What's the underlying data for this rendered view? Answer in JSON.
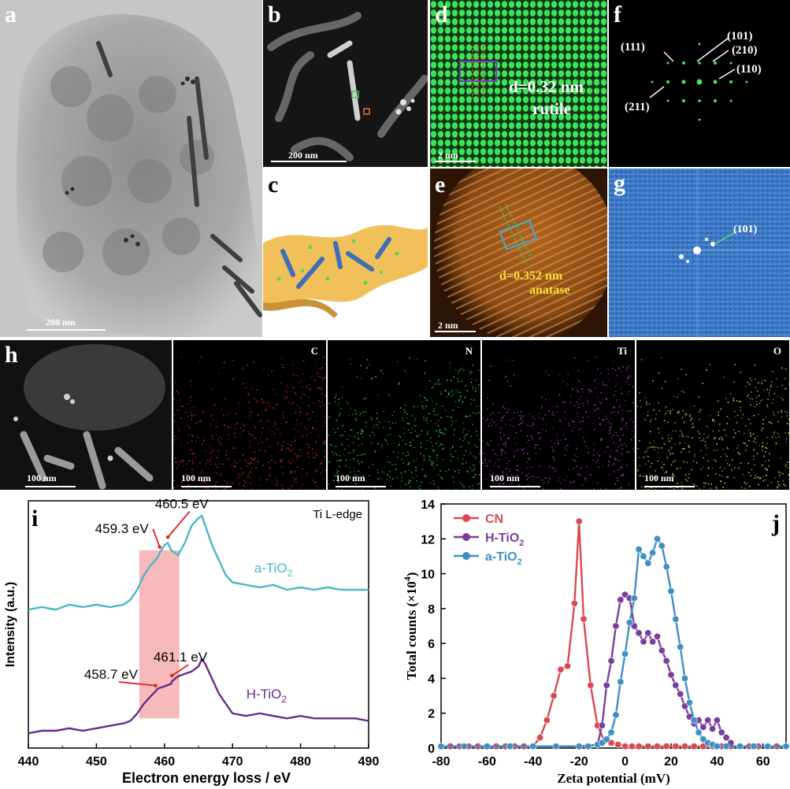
{
  "panels": {
    "a": {
      "label": "a",
      "scale": "200 nm"
    },
    "b": {
      "label": "b",
      "scale": "200 nm"
    },
    "c": {
      "label": "c"
    },
    "d": {
      "label": "d",
      "scale": "2 nm",
      "d_text": "d=0.32 nm",
      "phase": "rutile"
    },
    "e": {
      "label": "e",
      "scale": "2 nm",
      "d_text": "d=0.352 nm",
      "phase": "anatase"
    },
    "f": {
      "label": "f",
      "indices": [
        "(111)",
        "(101)",
        "(210)",
        "(110)",
        "(211)"
      ]
    },
    "g": {
      "label": "g",
      "indices": [
        "(101)"
      ]
    },
    "h": {
      "label": "h",
      "maps": [
        {
          "element": "",
          "scale": "100 nm",
          "color": "#bfbfbf"
        },
        {
          "element": "C",
          "scale": "100 nm",
          "color": "#d92b2b"
        },
        {
          "element": "N",
          "scale": "100 nm",
          "color": "#2fd04a"
        },
        {
          "element": "Ti",
          "scale": "100 nm",
          "color": "#b43ec8"
        },
        {
          "element": "O",
          "scale": "100 nm",
          "color": "#d8d24a"
        }
      ]
    }
  },
  "chart_data": [
    {
      "panel": "i",
      "type": "line",
      "title": "Ti L-edge",
      "xlabel": "Electron energy loss / eV",
      "ylabel": "Intensity (a.u.)",
      "xlim": [
        440,
        490
      ],
      "xticks": [
        440,
        450,
        460,
        470,
        480,
        490
      ],
      "series": [
        {
          "name": "a-TiO2",
          "color": "#4ab7c9",
          "x": [
            440,
            442,
            444,
            446,
            448,
            450,
            452,
            454,
            455,
            456,
            457,
            458,
            459,
            459.3,
            460,
            460.5,
            461,
            462,
            463,
            464,
            465,
            465.5,
            466,
            467,
            468,
            469,
            470,
            472,
            474,
            476,
            478,
            480,
            482,
            484,
            486,
            488,
            490
          ],
          "y": [
            0.56,
            0.57,
            0.56,
            0.58,
            0.57,
            0.58,
            0.57,
            0.58,
            0.6,
            0.64,
            0.7,
            0.74,
            0.77,
            0.79,
            0.82,
            0.83,
            0.8,
            0.78,
            0.83,
            0.9,
            0.93,
            0.94,
            0.9,
            0.82,
            0.76,
            0.7,
            0.67,
            0.66,
            0.65,
            0.66,
            0.64,
            0.65,
            0.64,
            0.65,
            0.64,
            0.64,
            0.64
          ]
        },
        {
          "name": "H-TiO2",
          "color": "#6a2a8a",
          "x": [
            440,
            442,
            444,
            446,
            448,
            450,
            452,
            454,
            455,
            456,
            457,
            458,
            458.7,
            459,
            460,
            461,
            461.1,
            462,
            463,
            464,
            465,
            465.5,
            466,
            467,
            468,
            469,
            470,
            472,
            474,
            476,
            478,
            480,
            482,
            484,
            486,
            488,
            490
          ],
          "y": [
            0.06,
            0.07,
            0.07,
            0.08,
            0.07,
            0.08,
            0.09,
            0.1,
            0.11,
            0.14,
            0.18,
            0.21,
            0.23,
            0.24,
            0.25,
            0.26,
            0.27,
            0.29,
            0.3,
            0.31,
            0.33,
            0.36,
            0.34,
            0.28,
            0.22,
            0.18,
            0.14,
            0.13,
            0.14,
            0.13,
            0.12,
            0.13,
            0.12,
            0.12,
            0.12,
            0.12,
            0.11
          ]
        }
      ],
      "annotations": [
        {
          "text": "460.5 eV",
          "x": 460.5,
          "series": "a-TiO2"
        },
        {
          "text": "459.3 eV",
          "x": 459.3,
          "series": "a-TiO2"
        },
        {
          "text": "461.1 eV",
          "x": 461.1,
          "series": "H-TiO2"
        },
        {
          "text": "458.7 eV",
          "x": 458.7,
          "series": "H-TiO2"
        }
      ],
      "shaded_region": {
        "x": [
          456.3,
          462.2
        ]
      },
      "series_labels": {
        "a": {
          "base": "a-TiO",
          "sub": "2"
        },
        "h": {
          "base": "H-TiO",
          "sub": "2"
        }
      }
    },
    {
      "panel": "j",
      "type": "line",
      "xlabel": "Zeta potential (mV)",
      "ylabel_base": "Total counts (×10",
      "ylabel_sup": "4",
      "ylabel_end": ")",
      "xlim": [
        -80,
        70
      ],
      "ylim": [
        0,
        14
      ],
      "xticks": [
        -80,
        -60,
        -40,
        -20,
        0,
        20,
        40,
        60
      ],
      "yticks": [
        0,
        2,
        4,
        6,
        8,
        10,
        12,
        14
      ],
      "legend": "top-left",
      "series": [
        {
          "name": "CN",
          "sub": "",
          "color": "#d94a52",
          "x": [
            -80,
            -76,
            -72,
            -68,
            -64,
            -60,
            -56,
            -52,
            -48,
            -44,
            -40,
            -37,
            -34,
            -31,
            -28,
            -25,
            -22,
            -20,
            -18,
            -15,
            -12,
            -9,
            -6,
            -3,
            0,
            3,
            6,
            10,
            14,
            18,
            22,
            26,
            30,
            34,
            38,
            42,
            46,
            50,
            54,
            58,
            62,
            66,
            70
          ],
          "y": [
            0.1,
            0.1,
            0.1,
            0.1,
            0.1,
            0.1,
            0.1,
            0.1,
            0.1,
            0.1,
            0.1,
            0.6,
            1.6,
            3.0,
            4.5,
            4.7,
            8.3,
            13.0,
            7.4,
            3.6,
            1.3,
            0.4,
            0.3,
            0.2,
            0.1,
            0.1,
            0.1,
            0.1,
            0.1,
            0.1,
            0.1,
            0.1,
            0.1,
            0.1,
            0.1,
            0.1,
            0.1,
            0.1,
            0.1,
            0.1,
            0.1,
            0.1,
            0.1
          ]
        },
        {
          "name": "H-TiO",
          "sub": "2",
          "color": "#7b3e9c",
          "x": [
            -80,
            -40,
            -20,
            -12,
            -10,
            -8,
            -6,
            -4,
            -2,
            0,
            2,
            4,
            6,
            8,
            10,
            12,
            14,
            16,
            18,
            20,
            22,
            24,
            26,
            28,
            30,
            32,
            34,
            36,
            38,
            40,
            42,
            44,
            46
          ],
          "y": [
            0.1,
            0.1,
            0.1,
            0.2,
            1.3,
            3.6,
            5.0,
            7.0,
            8.5,
            8.8,
            8.6,
            7.0,
            6.6,
            6.1,
            6.6,
            6.1,
            6.4,
            5.6,
            5.0,
            4.2,
            3.6,
            3.1,
            2.4,
            1.8,
            1.4,
            1.6,
            1.2,
            1.6,
            1.1,
            1.6,
            0.9,
            0.6,
            0.3
          ]
        },
        {
          "name": "a-TiO",
          "sub": "2",
          "color": "#3f8fc4",
          "x": [
            -80,
            -70,
            -60,
            -50,
            -40,
            -30,
            -20,
            -16,
            -12,
            -10,
            -8,
            -6,
            -4,
            -2,
            0,
            2,
            4,
            6,
            8,
            10,
            12,
            14,
            16,
            18,
            20,
            22,
            24,
            26,
            28,
            30,
            32,
            34,
            36,
            38,
            40,
            44,
            50,
            56,
            62,
            70
          ],
          "y": [
            0.1,
            0.1,
            0.1,
            0.1,
            0.1,
            0.1,
            0.1,
            0.1,
            0.2,
            0.3,
            0.5,
            0.9,
            1.9,
            3.8,
            5.4,
            7.2,
            8.6,
            11.4,
            11.0,
            10.6,
            11.2,
            12.0,
            11.6,
            10.4,
            9.0,
            7.4,
            5.8,
            4.0,
            2.6,
            1.6,
            0.9,
            0.5,
            0.3,
            0.2,
            0.1,
            0.1,
            0.1,
            0.1,
            0.1,
            0.1
          ]
        }
      ]
    }
  ]
}
